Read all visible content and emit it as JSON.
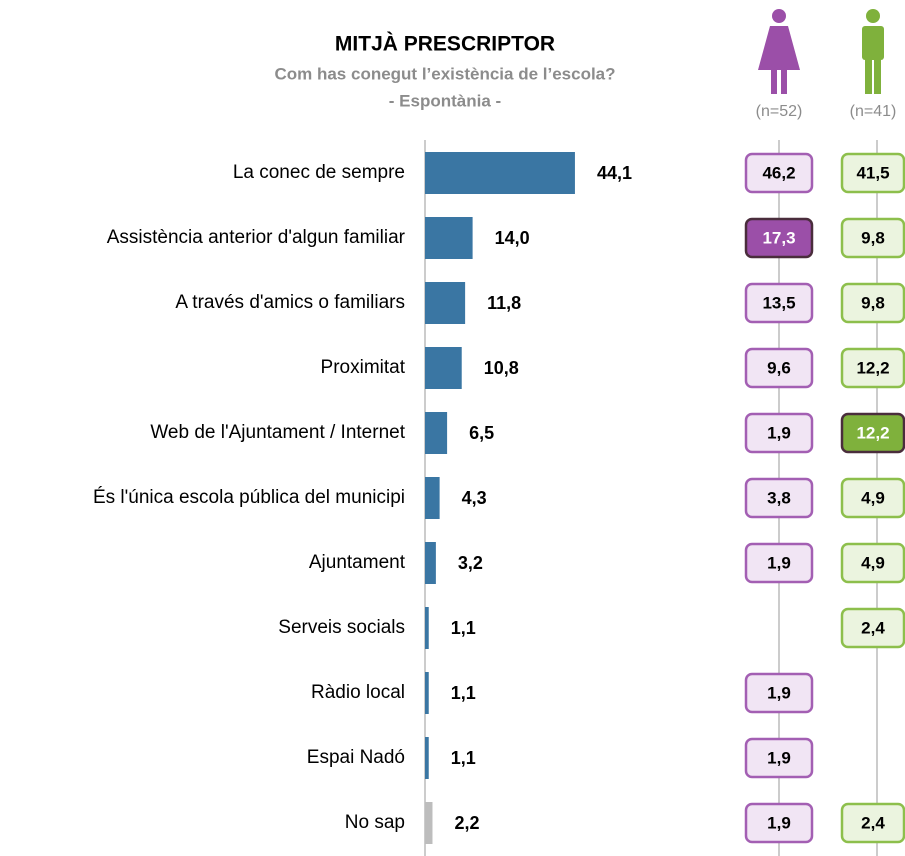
{
  "chart_data": {
    "type": "bar",
    "title": "MITJÀ PRESCRIPTOR",
    "subtitle": [
      "Com has conegut l’existència de l’escola?",
      "- Espontània -"
    ],
    "categories": [
      "La conec de sempre",
      "Assistència anterior d'algun familiar",
      "A través d'amics o familiars",
      "Proximitat",
      "Web de l'Ajuntament / Internet",
      "És l'única escola pública del municipi",
      "Ajuntament",
      "Serveis socials",
      "Ràdio local",
      "Espai Nadó",
      "No sap"
    ],
    "values": [
      44.1,
      14.0,
      11.8,
      10.8,
      6.5,
      4.3,
      3.2,
      1.1,
      1.1,
      1.1,
      2.2
    ],
    "value_labels": [
      "44,1",
      "14,0",
      "11,8",
      "10,8",
      "6,5",
      "4,3",
      "3,2",
      "1,1",
      "1,1",
      "1,1",
      "2,2"
    ],
    "colors": [
      "#3a76a3",
      "#3a76a3",
      "#3a76a3",
      "#3a76a3",
      "#3a76a3",
      "#3a76a3",
      "#3a76a3",
      "#3a76a3",
      "#3a76a3",
      "#3a76a3",
      "#bdbdbd"
    ],
    "xlim": [
      0,
      100
    ],
    "groups": [
      {
        "label": "(n=52)",
        "color": "#a35fb3",
        "fill": "#f1e5f4",
        "highlight_color": "#9b4fa8",
        "values": [
          46.2,
          17.3,
          13.5,
          9.6,
          1.9,
          3.8,
          1.9,
          null,
          1.9,
          1.9,
          1.9
        ],
        "value_labels": [
          "46,2",
          "17,3",
          "13,5",
          "9,6",
          "1,9",
          "3,8",
          "1,9",
          null,
          "1,9",
          "1,9",
          "1,9"
        ],
        "highlight": [
          1
        ]
      },
      {
        "label": "(n=41)",
        "color": "#8dbf4c",
        "fill": "#ebf4df",
        "highlight_color": "#7fb13c",
        "values": [
          41.5,
          9.8,
          9.8,
          12.2,
          12.2,
          4.9,
          4.9,
          2.4,
          null,
          null,
          2.4
        ],
        "value_labels": [
          "41,5",
          "9,8",
          "9,8",
          "12,2",
          "12,2",
          "4,9",
          "4,9",
          "2,4",
          null,
          null,
          "2,4"
        ],
        "highlight": [
          4
        ]
      }
    ]
  }
}
